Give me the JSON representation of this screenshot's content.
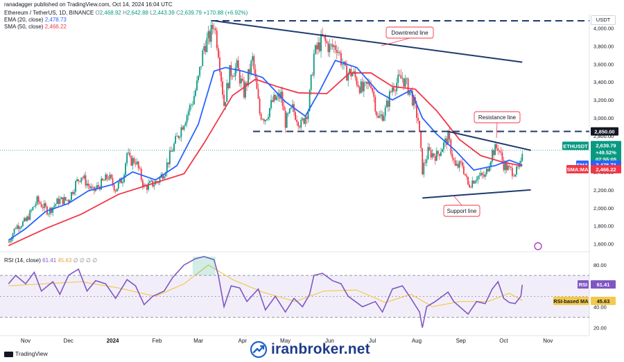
{
  "header": {
    "published": "ranadagger published on TradingView.com, Oct 14, 2024 16:04 UTC",
    "symbol": "Ethereum / TetherUS, 1D, BINANCE",
    "ohlc": {
      "o_label": "O",
      "o": "2,468.92",
      "h_label": "H",
      "h": "2,642.88",
      "l_label": "L",
      "l": "2,443.39",
      "c_label": "C",
      "c": "2,639.79",
      "chg": "+170.88 (+6.92%)"
    },
    "ema": {
      "label": "EMA (20, close)",
      "value": "2,478.73"
    },
    "sma": {
      "label": "SMA (50, close)",
      "value": "2,466.22"
    },
    "rsi": {
      "label": "RSI (14, close)",
      "v1": "61.41",
      "v2": "45.63",
      "zeros": "∅ ∅ ∅ ∅"
    },
    "currency": "USDT"
  },
  "footer": {
    "tradingview": "TradingView",
    "brand": "iranbroker.net"
  },
  "colors": {
    "up": "#089981",
    "down": "#f23645",
    "ema": "#2962ff",
    "sma": "#f23645",
    "rsi": "#7e57c2",
    "rsima": "#f2c94c",
    "trend": "#1e3a6e",
    "bg": "#ffffff"
  },
  "chart_data": {
    "type": "candlestick",
    "title": "",
    "price_axis": {
      "ticks": [
        "4,000.00",
        "3,800.00",
        "3,600.00",
        "3,400.00",
        "3,200.00",
        "3,000.00",
        "2,800.00",
        "2,600.00",
        "2,400.00",
        "2,200.00",
        "2,000.00",
        "1,800.00",
        "1,600.00"
      ],
      "range": [
        1520,
        4080
      ],
      "scale": "linear"
    },
    "time_axis": {
      "ticks": [
        "Nov",
        "Dec",
        "2024",
        "Feb",
        "Mar",
        "Apr",
        "May",
        "Jun",
        "Jul",
        "Aug",
        "Sep",
        "Oct",
        "Nov"
      ]
    },
    "rsi_axis": {
      "ticks": [
        "80.00",
        "60.00",
        "40.00",
        "20.00"
      ],
      "range": [
        15,
        92
      ],
      "bands": [
        30,
        70
      ]
    },
    "badges": {
      "level_2850": "2,850.00",
      "ethusdt_label": "ETHUSDT",
      "ethusdt_price": "2,639.79",
      "ethusdt_chg": "+49.52%",
      "ethusdt_time": "07:55:05",
      "ema_label": "EMA",
      "ema_value": "2,478.73",
      "sma_label": "SMA:MA",
      "sma_value": "2,466.22",
      "rsi_label": "RSI",
      "rsi_value": "61.41",
      "rsima_label": "RSI-based MA",
      "rsima_value": "45.63"
    },
    "annotations": {
      "downtrend": "Downtrend line",
      "resistance": "Resistance line",
      "support": "Support line"
    },
    "trendlines": {
      "downtrend": {
        "from": [
          "2024-03-12",
          4080
        ],
        "to": [
          "2024-10-14",
          3620
        ]
      },
      "resistance": {
        "from": [
          "2024-08-23",
          2850
        ],
        "to": [
          "2024-10-20",
          2640
        ]
      },
      "support": {
        "from": [
          "2024-08-05",
          2110
        ],
        "to": [
          "2024-10-20",
          2200
        ]
      },
      "horizontal_4080": 4080,
      "horizontal_2850": 2850
    },
    "series_points": {
      "close": [
        [
          "2023-10-20",
          1620
        ],
        [
          "2023-10-25",
          1790
        ],
        [
          "2023-11-01",
          1850
        ],
        [
          "2023-11-09",
          2080
        ],
        [
          "2023-11-17",
          1960
        ],
        [
          "2023-11-24",
          2080
        ],
        [
          "2023-12-01",
          2090
        ],
        [
          "2023-12-06",
          2270
        ],
        [
          "2023-12-10",
          2360
        ],
        [
          "2023-12-18",
          2180
        ],
        [
          "2023-12-24",
          2270
        ],
        [
          "2023-12-29",
          2350
        ],
        [
          "2024-01-03",
          2210
        ],
        [
          "2024-01-08",
          2330
        ],
        [
          "2024-01-11",
          2610
        ],
        [
          "2024-01-13",
          2520
        ],
        [
          "2024-01-17",
          2530
        ],
        [
          "2024-01-23",
          2230
        ],
        [
          "2024-01-28",
          2260
        ],
        [
          "2024-02-02",
          2300
        ],
        [
          "2024-02-07",
          2440
        ],
        [
          "2024-02-12",
          2660
        ],
        [
          "2024-02-19",
          2930
        ],
        [
          "2024-02-26",
          3190
        ],
        [
          "2024-03-01",
          3430
        ],
        [
          "2024-03-05",
          3800
        ],
        [
          "2024-03-09",
          3900
        ],
        [
          "2024-03-12",
          4060
        ],
        [
          "2024-03-15",
          3750
        ],
        [
          "2024-03-19",
          3150
        ],
        [
          "2024-03-23",
          3500
        ],
        [
          "2024-03-28",
          3560
        ],
        [
          "2024-04-02",
          3280
        ],
        [
          "2024-04-08",
          3650
        ],
        [
          "2024-04-13",
          3050
        ],
        [
          "2024-04-17",
          3000
        ],
        [
          "2024-04-22",
          3180
        ],
        [
          "2024-04-28",
          3250
        ],
        [
          "2024-05-01",
          2950
        ],
        [
          "2024-05-06",
          3100
        ],
        [
          "2024-05-12",
          2920
        ],
        [
          "2024-05-17",
          3100
        ],
        [
          "2024-05-21",
          3700
        ],
        [
          "2024-05-27",
          3880
        ],
        [
          "2024-06-01",
          3780
        ],
        [
          "2024-06-06",
          3800
        ],
        [
          "2024-06-12",
          3500
        ],
        [
          "2024-06-17",
          3500
        ],
        [
          "2024-06-24",
          3300
        ],
        [
          "2024-06-30",
          3400
        ],
        [
          "2024-07-05",
          2980
        ],
        [
          "2024-07-10",
          3080
        ],
        [
          "2024-07-15",
          3350
        ],
        [
          "2024-07-22",
          3450
        ],
        [
          "2024-07-28",
          3270
        ],
        [
          "2024-08-02",
          2980
        ],
        [
          "2024-08-05",
          2420
        ],
        [
          "2024-08-09",
          2620
        ],
        [
          "2024-08-15",
          2580
        ],
        [
          "2024-08-23",
          2780
        ],
        [
          "2024-08-28",
          2450
        ],
        [
          "2024-09-02",
          2480
        ],
        [
          "2024-09-06",
          2250
        ],
        [
          "2024-09-12",
          2350
        ],
        [
          "2024-09-18",
          2350
        ],
        [
          "2024-09-23",
          2620
        ],
        [
          "2024-09-27",
          2680
        ],
        [
          "2024-10-01",
          2480
        ],
        [
          "2024-10-05",
          2420
        ],
        [
          "2024-10-10",
          2400
        ],
        [
          "2024-10-13",
          2470
        ],
        [
          "2024-10-14",
          2640
        ]
      ],
      "ema20": [
        [
          "2023-10-20",
          1640
        ],
        [
          "2023-11-01",
          1770
        ],
        [
          "2023-11-15",
          1960
        ],
        [
          "2023-12-01",
          2050
        ],
        [
          "2023-12-15",
          2190
        ],
        [
          "2024-01-01",
          2260
        ],
        [
          "2024-01-15",
          2400
        ],
        [
          "2024-01-31",
          2310
        ],
        [
          "2024-02-15",
          2470
        ],
        [
          "2024-03-01",
          2930
        ],
        [
          "2024-03-12",
          3520
        ],
        [
          "2024-03-20",
          3560
        ],
        [
          "2024-04-01",
          3520
        ],
        [
          "2024-04-15",
          3450
        ],
        [
          "2024-05-01",
          3180
        ],
        [
          "2024-05-15",
          3020
        ],
        [
          "2024-05-25",
          3300
        ],
        [
          "2024-06-05",
          3640
        ],
        [
          "2024-06-20",
          3560
        ],
        [
          "2024-07-05",
          3290
        ],
        [
          "2024-07-15",
          3200
        ],
        [
          "2024-07-28",
          3310
        ],
        [
          "2024-08-05",
          3000
        ],
        [
          "2024-08-15",
          2820
        ],
        [
          "2024-08-28",
          2640
        ],
        [
          "2024-09-10",
          2420
        ],
        [
          "2024-09-25",
          2470
        ],
        [
          "2024-10-05",
          2530
        ],
        [
          "2024-10-14",
          2478
        ]
      ],
      "sma50": [
        [
          "2023-10-20",
          1580
        ],
        [
          "2023-11-15",
          1770
        ],
        [
          "2023-12-10",
          1930
        ],
        [
          "2024-01-05",
          2150
        ],
        [
          "2024-01-31",
          2280
        ],
        [
          "2024-02-20",
          2380
        ],
        [
          "2024-03-05",
          2720
        ],
        [
          "2024-03-25",
          3250
        ],
        [
          "2024-04-10",
          3430
        ],
        [
          "2024-04-25",
          3350
        ],
        [
          "2024-05-10",
          3280
        ],
        [
          "2024-05-30",
          3270
        ],
        [
          "2024-06-15",
          3500
        ],
        [
          "2024-06-30",
          3500
        ],
        [
          "2024-07-15",
          3350
        ],
        [
          "2024-07-31",
          3320
        ],
        [
          "2024-08-15",
          3080
        ],
        [
          "2024-08-31",
          2760
        ],
        [
          "2024-09-15",
          2580
        ],
        [
          "2024-09-30",
          2510
        ],
        [
          "2024-10-14",
          2466
        ]
      ],
      "rsi": [
        [
          "2023-10-20",
          62
        ],
        [
          "2023-10-25",
          70
        ],
        [
          "2023-11-01",
          62
        ],
        [
          "2023-11-07",
          73
        ],
        [
          "2023-11-12",
          55
        ],
        [
          "2023-11-20",
          64
        ],
        [
          "2023-11-25",
          52
        ],
        [
          "2023-12-01",
          70
        ],
        [
          "2023-12-08",
          76
        ],
        [
          "2023-12-14",
          55
        ],
        [
          "2023-12-20",
          65
        ],
        [
          "2023-12-27",
          62
        ],
        [
          "2024-01-03",
          48
        ],
        [
          "2024-01-11",
          66
        ],
        [
          "2024-01-17",
          60
        ],
        [
          "2024-01-23",
          42
        ],
        [
          "2024-01-29",
          50
        ],
        [
          "2024-02-06",
          55
        ],
        [
          "2024-02-12",
          68
        ],
        [
          "2024-02-20",
          80
        ],
        [
          "2024-02-28",
          86
        ],
        [
          "2024-03-05",
          88
        ],
        [
          "2024-03-12",
          85
        ],
        [
          "2024-03-15",
          70
        ],
        [
          "2024-03-19",
          40
        ],
        [
          "2024-03-24",
          60
        ],
        [
          "2024-03-30",
          58
        ],
        [
          "2024-04-04",
          45
        ],
        [
          "2024-04-12",
          57
        ],
        [
          "2024-04-17",
          37
        ],
        [
          "2024-04-24",
          50
        ],
        [
          "2024-05-01",
          35
        ],
        [
          "2024-05-07",
          48
        ],
        [
          "2024-05-13",
          40
        ],
        [
          "2024-05-18",
          52
        ],
        [
          "2024-05-21",
          70
        ],
        [
          "2024-05-27",
          72
        ],
        [
          "2024-06-03",
          65
        ],
        [
          "2024-06-09",
          62
        ],
        [
          "2024-06-14",
          50
        ],
        [
          "2024-06-24",
          40
        ],
        [
          "2024-07-03",
          45
        ],
        [
          "2024-07-08",
          35
        ],
        [
          "2024-07-15",
          57
        ],
        [
          "2024-07-22",
          60
        ],
        [
          "2024-07-28",
          48
        ],
        [
          "2024-08-03",
          35
        ],
        [
          "2024-08-05",
          20
        ],
        [
          "2024-08-08",
          40
        ],
        [
          "2024-08-14",
          45
        ],
        [
          "2024-08-23",
          54
        ],
        [
          "2024-08-27",
          45
        ],
        [
          "2024-09-06",
          33
        ],
        [
          "2024-09-12",
          45
        ],
        [
          "2024-09-18",
          43
        ],
        [
          "2024-09-23",
          57
        ],
        [
          "2024-09-27",
          64
        ],
        [
          "2024-10-01",
          48
        ],
        [
          "2024-10-05",
          44
        ],
        [
          "2024-10-09",
          43
        ],
        [
          "2024-10-13",
          50
        ],
        [
          "2024-10-14",
          61
        ]
      ],
      "rsi_ma": [
        [
          "2023-10-20",
          60
        ],
        [
          "2023-11-15",
          62
        ],
        [
          "2023-12-10",
          64
        ],
        [
          "2024-01-05",
          58
        ],
        [
          "2024-01-31",
          50
        ],
        [
          "2024-02-20",
          62
        ],
        [
          "2024-03-08",
          80
        ],
        [
          "2024-03-25",
          66
        ],
        [
          "2024-04-15",
          54
        ],
        [
          "2024-05-08",
          45
        ],
        [
          "2024-05-28",
          55
        ],
        [
          "2024-06-20",
          56
        ],
        [
          "2024-07-10",
          44
        ],
        [
          "2024-07-28",
          52
        ],
        [
          "2024-08-12",
          40
        ],
        [
          "2024-08-31",
          45
        ],
        [
          "2024-09-20",
          45
        ],
        [
          "2024-10-05",
          53
        ],
        [
          "2024-10-14",
          46
        ]
      ]
    }
  }
}
